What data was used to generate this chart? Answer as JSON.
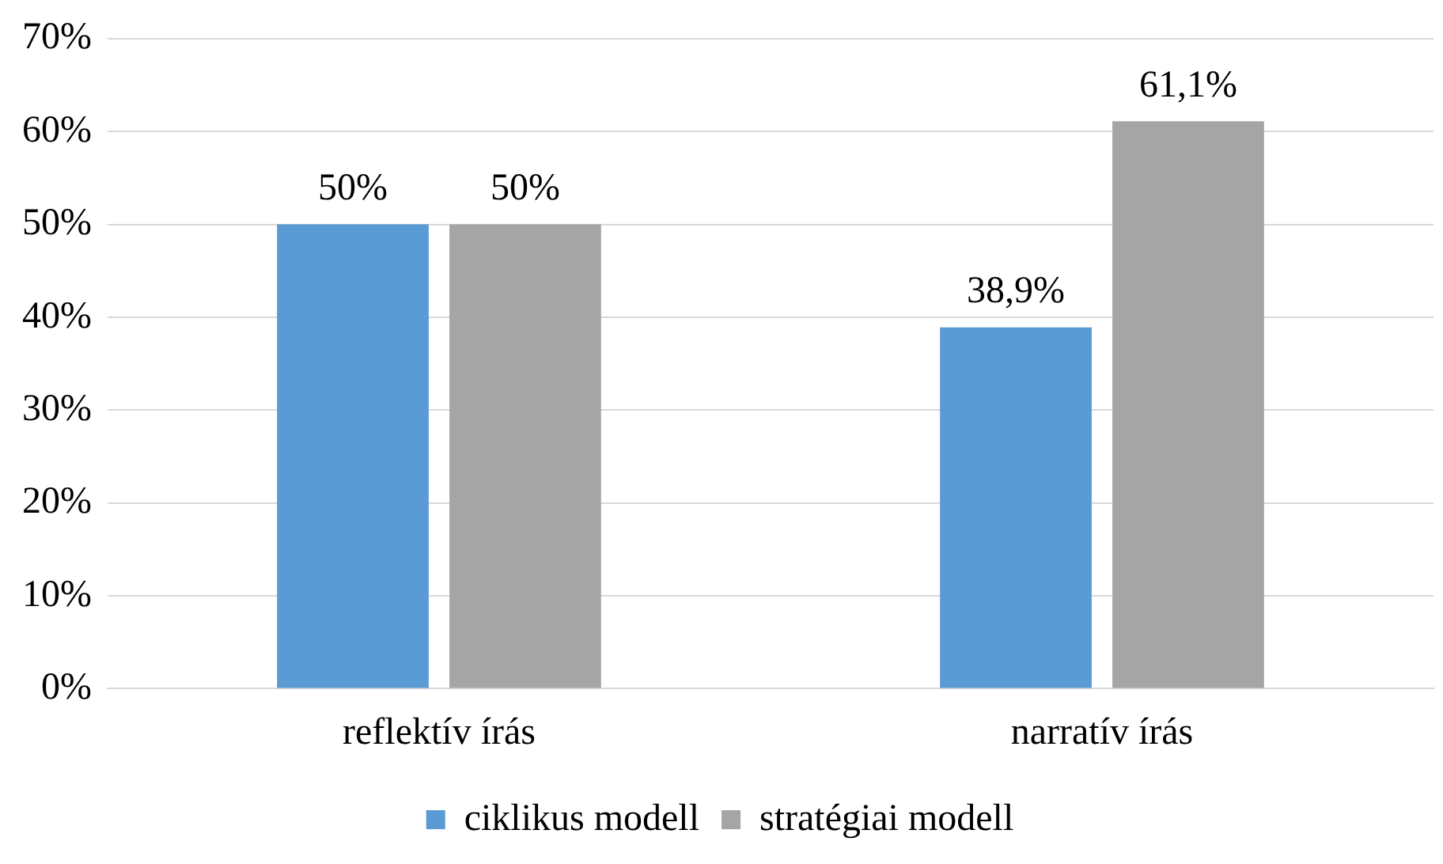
{
  "chart_data": {
    "type": "bar",
    "categories": [
      "reflektív írás",
      "narratív írás"
    ],
    "series": [
      {
        "name": "ciklikus modell",
        "color": "#5b9bd5",
        "values": [
          50,
          38.9
        ],
        "value_labels": [
          "50%",
          "38,9%"
        ]
      },
      {
        "name": "stratégiai modell",
        "color": "#a5a5a5",
        "values": [
          50,
          61.1
        ],
        "value_labels": [
          "50%",
          "61,1%"
        ]
      }
    ],
    "ylim": [
      0,
      70
    ],
    "yticks": [
      {
        "value": 0,
        "label": "0%"
      },
      {
        "value": 10,
        "label": "10%"
      },
      {
        "value": 20,
        "label": "20%"
      },
      {
        "value": 30,
        "label": "30%"
      },
      {
        "value": 40,
        "label": "40%"
      },
      {
        "value": 50,
        "label": "50%"
      },
      {
        "value": 60,
        "label": "60%"
      },
      {
        "value": 70,
        "label": "70%"
      }
    ],
    "grid": "y",
    "legend": "bottom"
  }
}
